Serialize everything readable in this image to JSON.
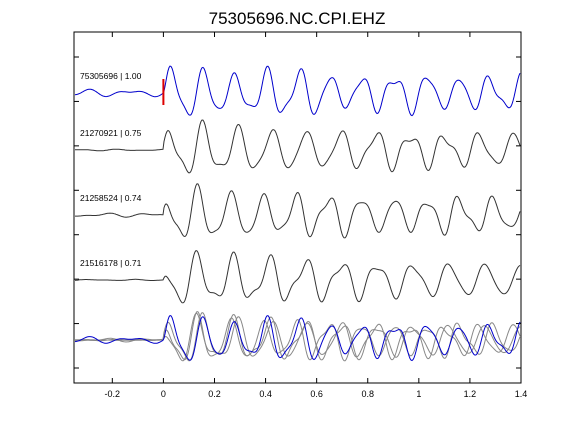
{
  "chart_data": {
    "type": "line",
    "title": "75305696.NC.CPI.EHZ",
    "xlim": [
      -0.35,
      1.4
    ],
    "x_ticks": [
      -0.2,
      0,
      0.2,
      0.4,
      0.6,
      0.8,
      1,
      1.2,
      1.4
    ],
    "x_tick_labels": [
      "-0.2",
      "0",
      "0.2",
      "0.4",
      "0.6",
      "0.8",
      "1",
      "1.2",
      "1.4"
    ],
    "grid": false,
    "colors": {
      "primary": "#0000cc",
      "secondary": "#333333",
      "stack": "#888888",
      "pick": "#dd0000"
    },
    "pick_time": 0,
    "traces": [
      {
        "label": "75305696 | 1.00",
        "color": "#0000cc",
        "freq": 8.0,
        "phase": 0.0,
        "pre_noise": 0.18
      },
      {
        "label": "21270921 | 0.75",
        "color": "#333333",
        "freq": 7.4,
        "phase": 0.6,
        "pre_noise": 0.04
      },
      {
        "label": "21258524 | 0.74",
        "color": "#333333",
        "freq": 7.8,
        "phase": 1.2,
        "pre_noise": 0.1
      },
      {
        "label": "21516178 | 0.71",
        "color": "#333333",
        "freq": 7.1,
        "phase": 1.9,
        "pre_noise": 0.03
      }
    ]
  }
}
